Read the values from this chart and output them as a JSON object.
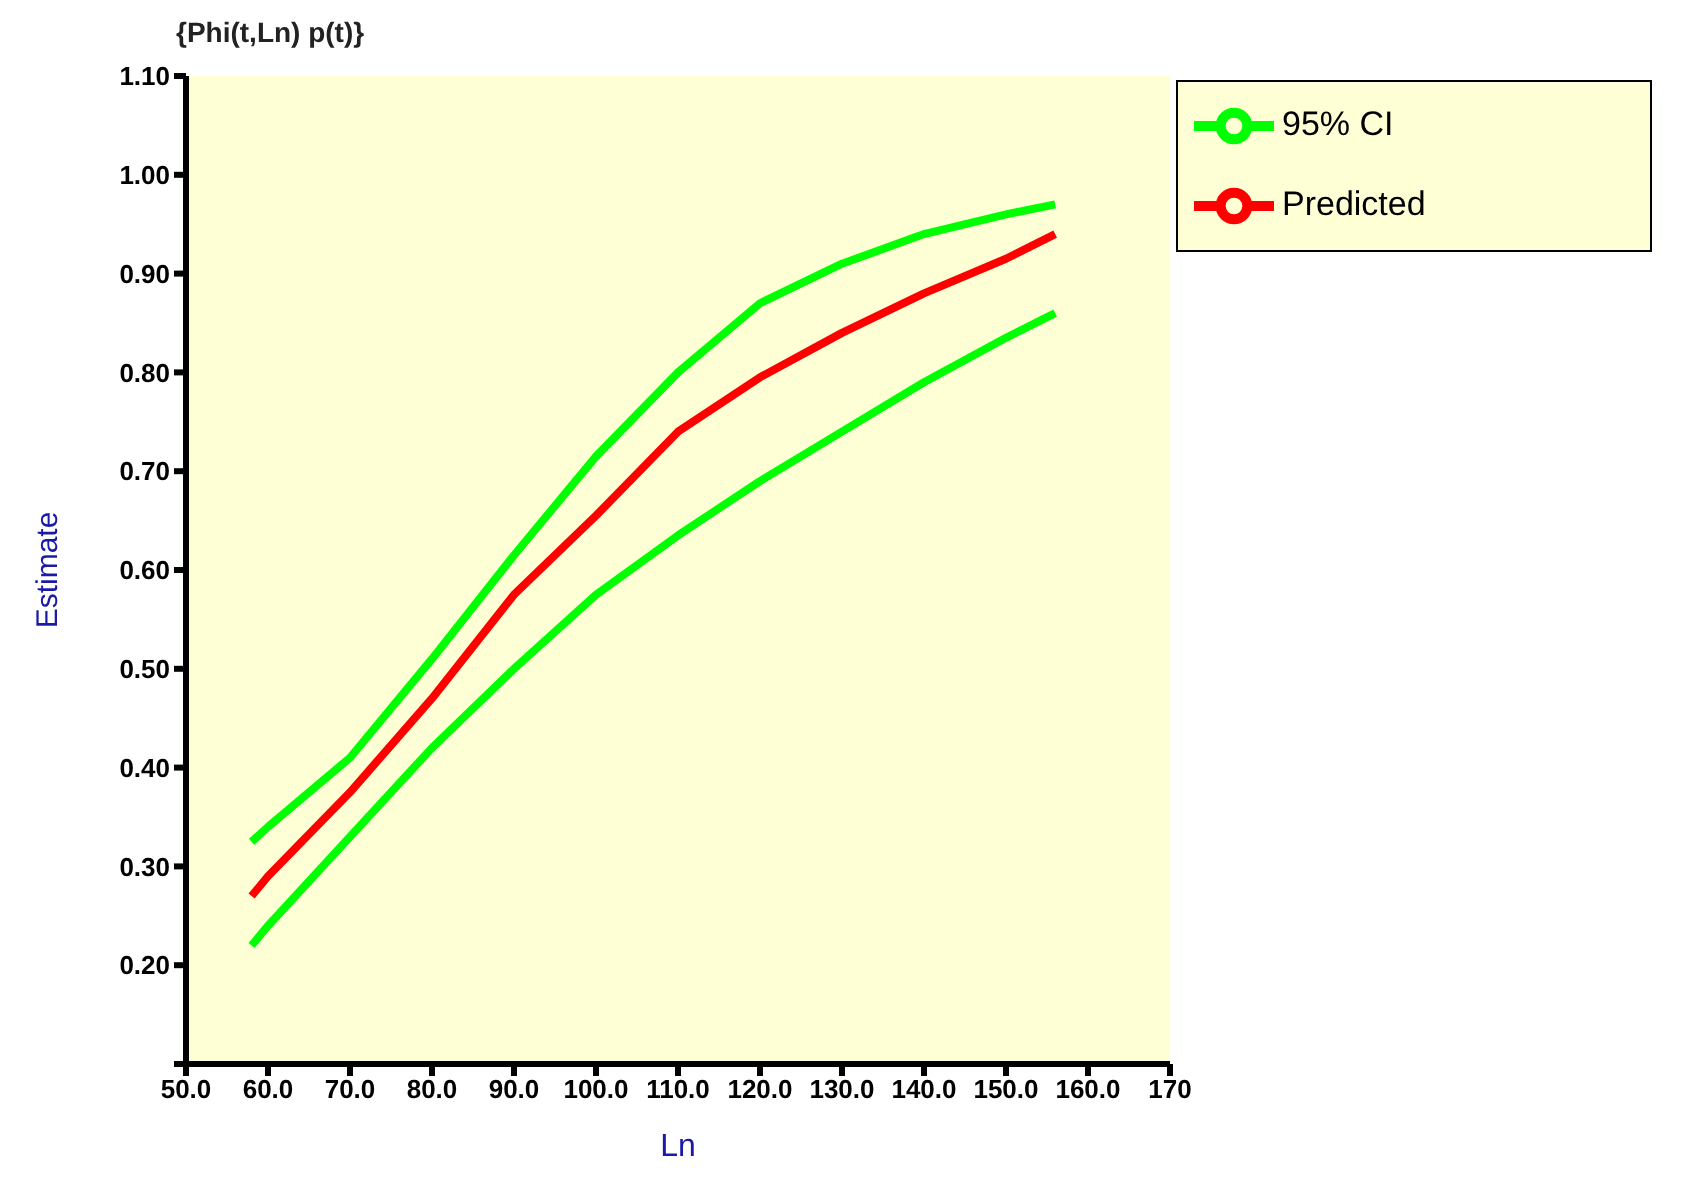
{
  "chart_data": {
    "type": "line",
    "title": "{Phi(t,Ln) p(t)}",
    "xlabel": "Ln",
    "ylabel": "Estimate",
    "x": [
      58,
      60,
      70,
      80,
      90,
      100,
      110,
      120,
      130,
      140,
      150,
      156
    ],
    "series": [
      {
        "name": "Predicted",
        "color": "#ff0000",
        "values": [
          0.27,
          0.29,
          0.375,
          0.47,
          0.575,
          0.655,
          0.74,
          0.795,
          0.84,
          0.88,
          0.915,
          0.94
        ]
      },
      {
        "name": "95% CI",
        "color": "#00ff00",
        "values": [
          0.325,
          0.34,
          0.41,
          0.51,
          0.615,
          0.715,
          0.8,
          0.87,
          0.91,
          0.94,
          0.96,
          0.97
        ]
      },
      {
        "color": "#00ff00",
        "values": [
          0.22,
          0.24,
          0.33,
          0.42,
          0.5,
          0.575,
          0.635,
          0.69,
          0.74,
          0.79,
          0.835,
          0.86
        ]
      }
    ],
    "xlim": [
      50,
      170
    ],
    "ylim": [
      0.1,
      1.1
    ],
    "xticks": [
      {
        "value": 50,
        "label": "50.0"
      },
      {
        "value": 60,
        "label": "60.0"
      },
      {
        "value": 70,
        "label": "70.0"
      },
      {
        "value": 80,
        "label": "80.0"
      },
      {
        "value": 90,
        "label": "90.0"
      },
      {
        "value": 100,
        "label": "100.0"
      },
      {
        "value": 110,
        "label": "110.0"
      },
      {
        "value": 120,
        "label": "120.0"
      },
      {
        "value": 130,
        "label": "130.0"
      },
      {
        "value": 140,
        "label": "140.0"
      },
      {
        "value": 150,
        "label": "150.0"
      },
      {
        "value": 160,
        "label": "160.0"
      },
      {
        "value": 170,
        "label": "170"
      }
    ],
    "yticks": [
      {
        "value": 0.1,
        "label": null
      },
      {
        "value": 0.2,
        "label": "0.20"
      },
      {
        "value": 0.3,
        "label": "0.30"
      },
      {
        "value": 0.4,
        "label": "0.40"
      },
      {
        "value": 0.5,
        "label": "0.50"
      },
      {
        "value": 0.6,
        "label": "0.60"
      },
      {
        "value": 0.7,
        "label": "0.70"
      },
      {
        "value": 0.8,
        "label": "0.80"
      },
      {
        "value": 0.9,
        "label": "0.90"
      },
      {
        "value": 1.0,
        "label": "1.00"
      },
      {
        "value": 1.1,
        "label": "1.10"
      }
    ],
    "grid": false,
    "legend": "top right",
    "marker": "none",
    "line_style": "solid"
  }
}
